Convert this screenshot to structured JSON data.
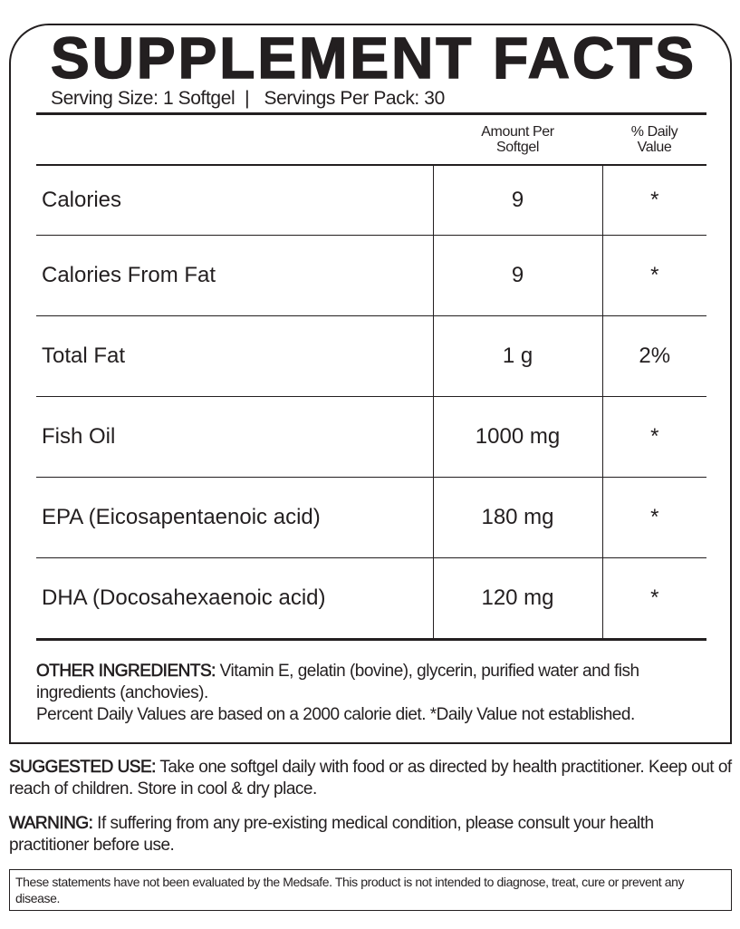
{
  "title": "SUPPLEMENT FACTS",
  "serving_line": "Serving Size: 1 Softgel  |   Servings Per Pack: 30",
  "table": {
    "headers": {
      "amount": [
        "Amount Per",
        "Softgel"
      ],
      "daily_value": [
        "% Daily",
        "Value"
      ]
    },
    "rows": [
      {
        "name": "Calories",
        "amount": "9",
        "dv": "*"
      },
      {
        "name": "Calories From Fat",
        "amount": "9",
        "dv": "*"
      },
      {
        "name": "Total Fat",
        "amount": "1 g",
        "dv": "2%"
      },
      {
        "name": "Fish Oil",
        "amount": "1000 mg",
        "dv": "*"
      },
      {
        "name": "EPA (Eicosapentaenoic acid)",
        "amount": "180 mg",
        "dv": "*"
      },
      {
        "name": "DHA (Docosahexaenoic acid)",
        "amount": "120 mg",
        "dv": "*"
      }
    ]
  },
  "other_ingredients": {
    "label": "OTHER INGREDIENTS:",
    "text": " Vitamin E, gelatin (bovine), glycerin, purified water and fish ingredients (anchovies)."
  },
  "daily_value_note": "Percent Daily Values are based on a 2000 calorie diet. *Daily Value not established.",
  "suggested_use": {
    "label": "SUGGESTED USE:",
    "text": " Take one softgel daily with food or as directed by health practitioner. Keep out of reach of children. Store in cool & dry place."
  },
  "warning": {
    "label": "WARNING:",
    "text": " If suffering from any pre-existing medical condition, please consult your health practitioner before use."
  },
  "disclaimer": "These statements have not been evaluated by the Medsafe. This product is not intended to diagnose, treat, cure or prevent any disease."
}
